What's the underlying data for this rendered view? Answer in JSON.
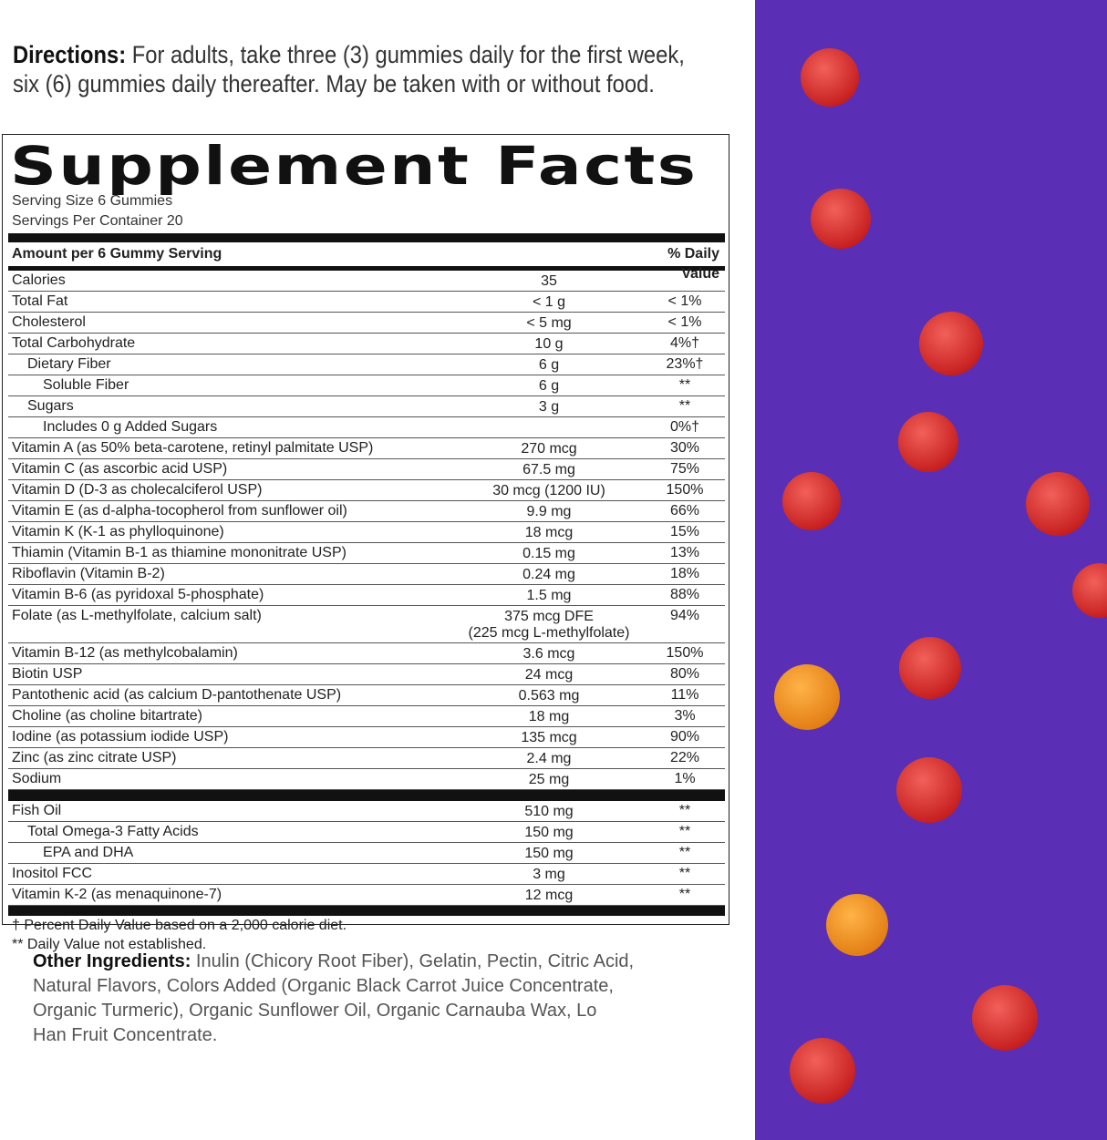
{
  "directions": {
    "label": "Directions:",
    "text": "For adults, take three (3) gummies daily for the first week, six (6) gummies daily thereafter. May be taken with or without food."
  },
  "facts": {
    "title": "Supplement Facts",
    "serving_size": "Serving Size 6 Gummies",
    "servings_per_container": "Servings Per Container 20",
    "header": [
      "Amount per 6 Gummy Serving",
      "% Daily Value"
    ],
    "rows": [
      [
        "Calories",
        "35",
        null
      ],
      [
        "Total Fat",
        "< 1 g",
        "< 1%"
      ],
      [
        "Cholesterol",
        "< 5 mg",
        "< 1%"
      ],
      [
        "Total Carbohydrate",
        "10 g",
        "4%†"
      ],
      [
        "Dietary Fiber",
        "6 g",
        "23%†"
      ],
      [
        "Soluble Fiber",
        "6 g",
        "**"
      ],
      [
        "Sugars",
        "3 g",
        "**"
      ],
      [
        "Includes 0 g Added Sugars",
        null,
        "0%†"
      ],
      [
        "Vitamin A (as 50% beta-carotene, retinyl palmitate USP)",
        "270 mcg",
        "30%"
      ],
      [
        "Vitamin C (as ascorbic acid USP)",
        "67.5 mg",
        "75%"
      ],
      [
        "Vitamin D (D-3 as cholecalciferol USP)",
        "30 mcg (1200 IU)",
        "150%"
      ],
      [
        "Vitamin E (as d-alpha-tocopherol from sunflower oil)",
        "9.9 mg",
        "66%"
      ],
      [
        "Vitamin K (K-1 as phylloquinone)",
        "18 mcg",
        "15%"
      ],
      [
        "Thiamin (Vitamin B-1 as thiamine mononitrate USP)",
        "0.15 mg",
        "13%"
      ],
      [
        "Riboflavin (Vitamin B-2)",
        "0.24 mg",
        "18%"
      ],
      [
        "Vitamin B-6 (as pyridoxal 5-phosphate)",
        "1.5 mg",
        "88%"
      ],
      [
        "Folate (as L-methylfolate, calcium salt)",
        "375 mcg DFE\n(225 mcg L-methylfolate)",
        "94%"
      ],
      [
        "Vitamin B-12 (as methylcobalamin)",
        "3.6 mcg",
        "150%"
      ],
      [
        "Biotin USP",
        "24 mcg",
        "80%"
      ],
      [
        "Pantothenic acid (as calcium D-pantothenate USP)",
        "0.563 mg",
        "11%"
      ],
      [
        "Choline (as choline bitartrate)",
        "18 mg",
        "3%"
      ],
      [
        "Iodine (as potassium iodide USP)",
        "135 mcg",
        "90%"
      ],
      [
        "Zinc (as zinc citrate USP)",
        "2.4 mg",
        "22%"
      ],
      [
        "Sodium",
        "25 mg",
        "1%"
      ]
    ],
    "other_rows": [
      [
        "Fish Oil",
        "510 mg",
        "**"
      ],
      [
        "Total Omega-3 Fatty Acids",
        "150 mg",
        "**"
      ],
      [
        "EPA and DHA",
        "150 mg",
        "**"
      ],
      [
        "Inositol FCC",
        "3 mg",
        "**"
      ],
      [
        "Vitamin K-2 (as menaquinone-7)",
        "12 mcg",
        "**"
      ]
    ],
    "footnotes": [
      "† Percent Daily Value based on a 2,000 calorie diet.",
      "** Daily Value not established."
    ]
  },
  "ingredients": {
    "label": "Other Ingredients:",
    "text": "Inulin (Chicory Root Fiber), Gelatin, Pectin, Citric Acid, Natural Flavors, Colors Added (Organic Black Carrot Juice Concentrate, Organic Turmeric), Organic Sunflower Oil, Organic Carnauba Wax, Lo Han Fruit Concentrate."
  }
}
